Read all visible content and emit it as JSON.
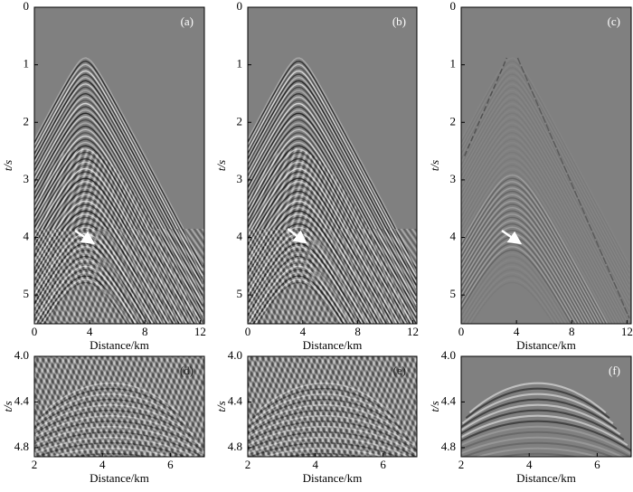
{
  "panels": [
    {
      "label": "(a)",
      "xlabel": "Distance/km",
      "ylabel": "t/s",
      "xlim": [
        0,
        12.3
      ],
      "ylim": [
        0,
        5.5
      ],
      "xticks": [
        0,
        4,
        8,
        12
      ],
      "yticks": [
        0,
        1,
        2,
        3,
        4,
        5
      ]
    },
    {
      "label": "(b)",
      "xlabel": "Distance/km",
      "ylabel": "t/s",
      "xlim": [
        0,
        12.3
      ],
      "ylim": [
        0,
        5.5
      ],
      "xticks": [
        0,
        4,
        8,
        12
      ],
      "yticks": [
        0,
        1,
        2,
        3,
        4,
        5
      ]
    },
    {
      "label": "(c)",
      "xlabel": "Distance/km",
      "ylabel": "t/s",
      "xlim": [
        0,
        12.3
      ],
      "ylim": [
        0,
        5.5
      ],
      "xticks": [
        0,
        4,
        8,
        12
      ],
      "yticks": [
        0,
        1,
        2,
        3,
        4,
        5
      ]
    },
    {
      "label": "(d)",
      "xlabel": "Distance/km",
      "ylabel": "t/s",
      "xlim": [
        2,
        7
      ],
      "ylim": [
        4,
        4.88
      ],
      "xticks": [
        2,
        4,
        6
      ],
      "yticks": [
        {
          "value": 4,
          "label": "4.0"
        },
        {
          "value": 4.4,
          "label": "4.4"
        },
        {
          "value": 4.8,
          "label": "4.8"
        }
      ]
    },
    {
      "label": "(e)",
      "xlabel": "Distance/km",
      "ylabel": "t/s",
      "xlim": [
        2,
        7
      ],
      "ylim": [
        4,
        4.88
      ],
      "xticks": [
        2,
        4,
        6
      ],
      "yticks": [
        {
          "value": 4,
          "label": "4.0"
        },
        {
          "value": 4.4,
          "label": "4.4"
        },
        {
          "value": 4.8,
          "label": "4.8"
        }
      ]
    },
    {
      "label": "(f)",
      "xlabel": "Distance/km",
      "ylabel": "t/s",
      "xlim": [
        2,
        7
      ],
      "ylim": [
        4,
        4.88
      ],
      "xticks": [
        2,
        4,
        6
      ],
      "yticks": [
        {
          "value": 4,
          "label": "4.0"
        },
        {
          "value": 4.4,
          "label": "4.4"
        },
        {
          "value": 4.8,
          "label": "4.8"
        }
      ]
    }
  ]
}
